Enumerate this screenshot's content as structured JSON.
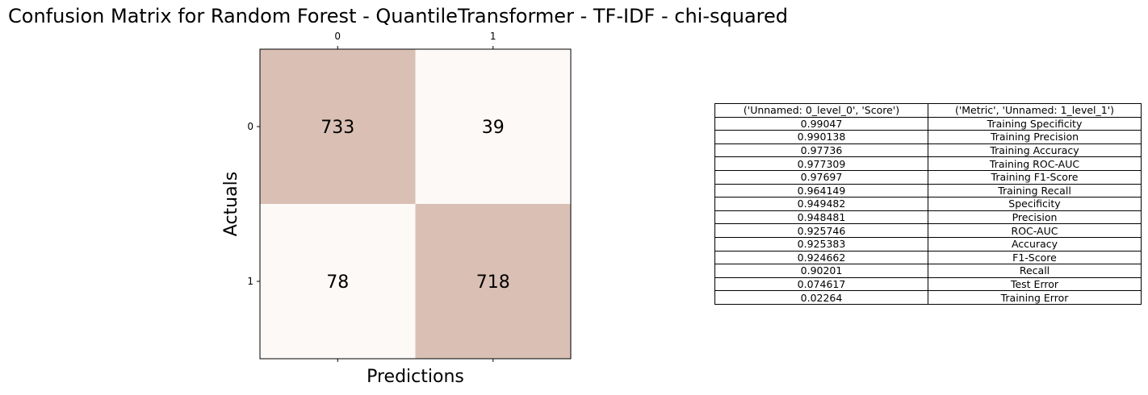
{
  "title": "Confusion Matrix for Random Forest - QuantileTransformer - TF-IDF - chi-squared",
  "chart_data": {
    "type": "heatmap",
    "title": "Confusion Matrix for Random Forest - QuantileTransformer - TF-IDF - chi-squared",
    "xlabel": "Predictions",
    "ylabel": "Actuals",
    "x_ticks": [
      "0",
      "1"
    ],
    "y_ticks": [
      "0",
      "1"
    ],
    "values": [
      [
        733,
        39
      ],
      [
        78,
        718
      ]
    ],
    "colors": {
      "high": "#d9bfb4",
      "low": "#fdf9f6"
    }
  },
  "table": {
    "headers": [
      "('Unnamed: 0_level_0', 'Score')",
      "('Metric', 'Unnamed: 1_level_1')"
    ],
    "rows": [
      [
        "0.99047",
        "Training Specificity"
      ],
      [
        "0.990138",
        "Training Precision"
      ],
      [
        "0.97736",
        "Training Accuracy"
      ],
      [
        "0.977309",
        "Training ROC-AUC"
      ],
      [
        "0.97697",
        "Training F1-Score"
      ],
      [
        "0.964149",
        "Training Recall"
      ],
      [
        "0.949482",
        "Specificity"
      ],
      [
        "0.948481",
        "Precision"
      ],
      [
        "0.925746",
        "ROC-AUC"
      ],
      [
        "0.925383",
        "Accuracy"
      ],
      [
        "0.924662",
        "F1-Score"
      ],
      [
        "0.90201",
        "Recall"
      ],
      [
        "0.074617",
        "Test Error"
      ],
      [
        "0.02264",
        "Training Error"
      ]
    ]
  }
}
